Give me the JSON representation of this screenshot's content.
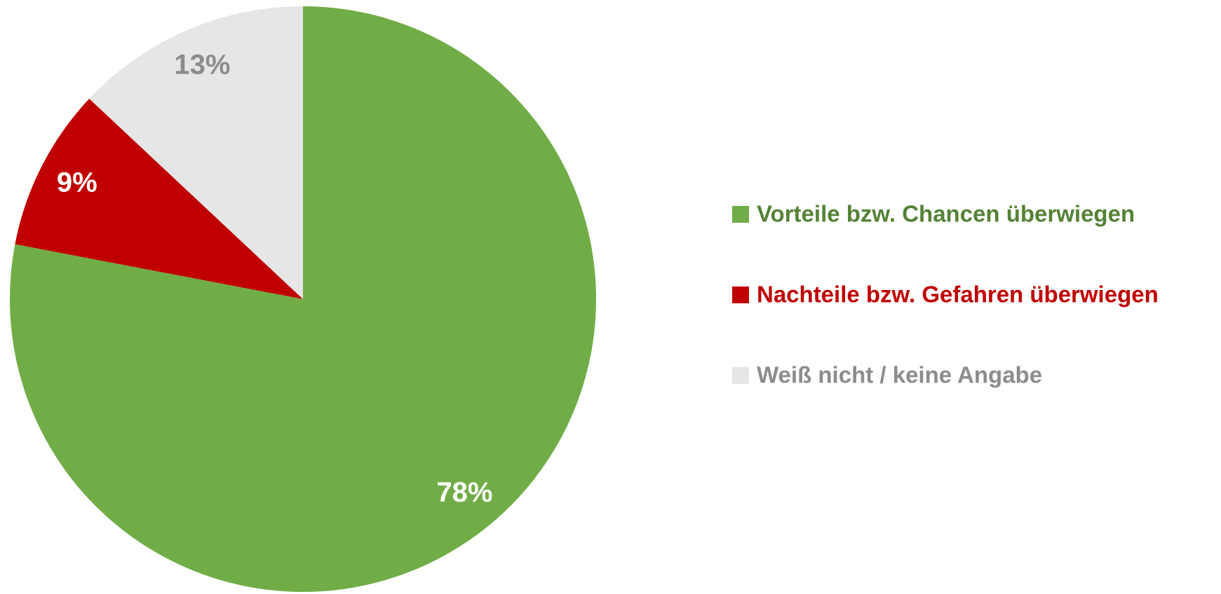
{
  "chart_data": {
    "type": "pie",
    "categories": [
      "Vorteile bzw. Chancen überwiegen",
      "Nachteile bzw. Gefahren überwiegen",
      "Weiß nicht / keine Angabe"
    ],
    "values": [
      78,
      9,
      13
    ],
    "value_labels": [
      "78%",
      "9%",
      "13%"
    ],
    "colors": [
      "#70ad47",
      "#c00000",
      "#e7e6e6"
    ],
    "legend_text_colors": [
      "#548235",
      "#c00000",
      "#8c8c8c"
    ],
    "value_label_colors": [
      "#ffffff",
      "#ffffff",
      "#8c8c8c"
    ],
    "legend": "right"
  }
}
